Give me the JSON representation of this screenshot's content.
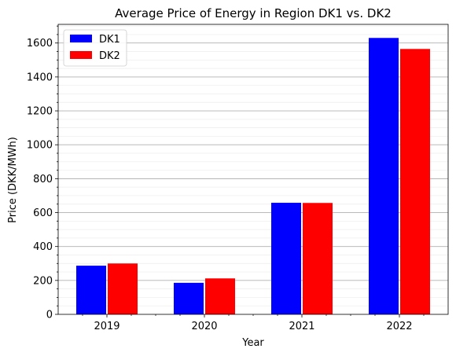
{
  "chart_data": {
    "type": "bar",
    "title": "Average Price of Energy in Region DK1 vs. DK2",
    "xlabel": "Year",
    "ylabel": "Price (DKK/MWh)",
    "categories": [
      "2019",
      "2020",
      "2021",
      "2022"
    ],
    "series": [
      {
        "name": "DK1",
        "color": "#0000ff",
        "values": [
          287,
          186,
          658,
          1630
        ]
      },
      {
        "name": "DK2",
        "color": "#ff0000",
        "values": [
          300,
          212,
          657,
          1565
        ]
      }
    ],
    "ylim": [
      0,
      1710
    ],
    "yticks": [
      0,
      200,
      400,
      600,
      800,
      1000,
      1200,
      1400,
      1600
    ],
    "ytick_labels": [
      "0",
      "200",
      "400",
      "600",
      "800",
      "1000",
      "1200",
      "1400",
      "1600"
    ],
    "y_minor_step": 50,
    "grid": {
      "major": true,
      "minor": true,
      "axis": "y"
    },
    "legend": "upper left"
  }
}
